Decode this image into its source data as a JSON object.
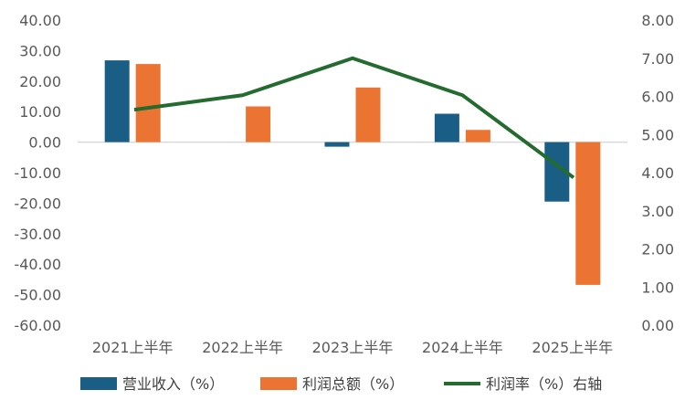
{
  "chart_data": {
    "type": "bar",
    "categories": [
      "2021上半年",
      "2022上半年",
      "2023上半年",
      "2024上半年",
      "2025上半年"
    ],
    "series": [
      {
        "name": "营业收入（%）",
        "type": "bar",
        "axis": "left",
        "color": "#1a5e85",
        "values": [
          26.8,
          0.0,
          -1.5,
          9.3,
          -19.5
        ]
      },
      {
        "name": "利润总额（%）",
        "type": "bar",
        "axis": "left",
        "color": "#ec7433",
        "values": [
          25.6,
          11.7,
          17.9,
          4.0,
          -46.8
        ]
      },
      {
        "name": "利润率（%）右轴",
        "type": "line",
        "axis": "right",
        "color": "#236b2e",
        "values": [
          5.65,
          6.03,
          7.0,
          6.03,
          3.87
        ]
      }
    ],
    "left_axis": {
      "min": -60,
      "max": 40,
      "step": 10,
      "tick_labels": [
        "40.00",
        "30.00",
        "20.00",
        "10.00",
        "0.00",
        "-10.00",
        "-20.00",
        "-30.00",
        "-40.00",
        "-50.00",
        "-60.00"
      ]
    },
    "right_axis": {
      "min": 0,
      "max": 8,
      "step": 1,
      "tick_labels": [
        "8.00",
        "7.00",
        "6.00",
        "5.00",
        "4.00",
        "3.00",
        "2.00",
        "1.00",
        "0.00"
      ]
    },
    "grid": false,
    "legend_position": "bottom",
    "title": "",
    "xlabel": "",
    "ylabel": ""
  }
}
